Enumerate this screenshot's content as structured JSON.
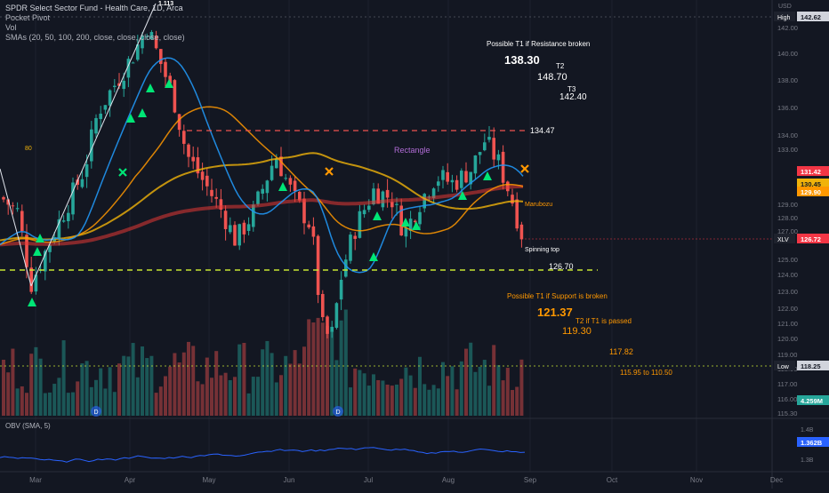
{
  "legend": {
    "title": "SPDR Select Sector Fund - Health Care, 1D, Arca",
    "line2": "Pocket Pivot",
    "line3": "Vol",
    "line4": "SMAs (20, 50, 100, 200, close, close, close, close)"
  },
  "price_axis": {
    "unit": "USD",
    "ticks": [
      "142.00",
      "140.00",
      "138.00",
      "136.00",
      "134.00",
      "133.00",
      "129.00",
      "128.00",
      "127.00",
      "125.00",
      "124.00",
      "123.00",
      "122.00",
      "121.00",
      "120.00",
      "119.00",
      "118.00",
      "117.00",
      "116.00",
      "115.30"
    ],
    "badges": [
      {
        "label": "High",
        "value": "142.62",
        "color": "#d1d4dc"
      },
      {
        "label": "",
        "value": "131.42",
        "color": "#f23645"
      },
      {
        "label": "",
        "value": "130.45",
        "color": "#f0b30a"
      },
      {
        "label": "",
        "value": "129.90",
        "color": "#ff9800"
      },
      {
        "label": "XLV",
        "value": "126.72",
        "color": "#f23645"
      },
      {
        "label": "Low",
        "value": "118.25",
        "color": "#d1d4dc"
      },
      {
        "label": "",
        "value": "4.259M",
        "color": "#26a69a"
      }
    ]
  },
  "obv": {
    "label": "OBV (SMA, 5)",
    "ticks": [
      "1.4B",
      "1.3B"
    ],
    "badge": "1.362B"
  },
  "time_axis": [
    "Mar",
    "Apr",
    "May",
    "Jun",
    "Jul",
    "Aug",
    "Sep",
    "Oct",
    "Nov",
    "Dec"
  ],
  "annotations": {
    "top_label": "1.113",
    "left_label": "80",
    "resistance_title": "Possible T1 if Resistance broken",
    "t1_up": "138.30",
    "t2_label": "T2",
    "t2_up": "148.70",
    "t3_label": "T3",
    "t3_up": "142.40",
    "resistance_level": "134.47",
    "rectangle": "Rectangle",
    "marubozu": "Marubozu",
    "spinning_top": "Spinning top",
    "support_level": "126.70",
    "support_title": "Possible T1 if Support is broken",
    "t1_down": "121.37",
    "t2_down_label": "T2 if T1 is passed",
    "t2_down": "119.30",
    "t3_down": "117.82",
    "range_down": "115.95 to 110.50"
  },
  "colors": {
    "background": "#131722",
    "up": "#26a69a",
    "down": "#ef5350",
    "sma20": "#2196f3",
    "sma50": "#ff9800",
    "sma100": "#f0b30a",
    "sma200": "#e53935",
    "support": "#c8e632",
    "resistance": "#ef5350",
    "target": "#ff9800",
    "signal": "#00e676",
    "obv": "#2962ff"
  },
  "chart_data": {
    "type": "candlestick",
    "title": "SPDR Select Sector Fund - Health Care, 1D, Arca",
    "x_range": [
      "Feb",
      "Dec"
    ],
    "y_range": [
      115.3,
      142.62
    ],
    "levels": {
      "resistance": 134.47,
      "support": 126.7,
      "high": 142.62,
      "low": 118.25,
      "last": 126.72
    },
    "targets_up": [
      138.3,
      148.7,
      142.4
    ],
    "targets_down": [
      121.37,
      119.3,
      117.82
    ],
    "close_path": [
      {
        "t": "Feb 1",
        "close": 130.0
      },
      {
        "t": "Feb 20",
        "close": 129.0
      },
      {
        "t": "Feb 28",
        "close": 124.0
      },
      {
        "t": "Mar 10",
        "close": 128.0
      },
      {
        "t": "Mar 20",
        "close": 134.0
      },
      {
        "t": "Mar 30",
        "close": 138.0
      },
      {
        "t": "Apr 8",
        "close": 142.0
      },
      {
        "t": "Apr 15",
        "close": 139.5
      },
      {
        "t": "Apr 22",
        "close": 136.0
      },
      {
        "t": "Apr 30",
        "close": 131.0
      },
      {
        "t": "May 10",
        "close": 129.0
      },
      {
        "t": "May 20",
        "close": 127.0
      },
      {
        "t": "May 31",
        "close": 133.0
      },
      {
        "t": "Jun 8",
        "close": 130.0
      },
      {
        "t": "Jun 16",
        "close": 121.0
      },
      {
        "t": "Jun 22",
        "close": 124.0
      },
      {
        "t": "Jun 30",
        "close": 128.0
      },
      {
        "t": "Jul 10",
        "close": 130.5
      },
      {
        "t": "Jul 20",
        "close": 129.0
      },
      {
        "t": "Jul 28",
        "close": 131.5
      },
      {
        "t": "Aug 5",
        "close": 131.0
      },
      {
        "t": "Aug 15",
        "close": 134.2
      },
      {
        "t": "Aug 22",
        "close": 130.0
      },
      {
        "t": "Aug 26",
        "close": 126.72
      }
    ]
  }
}
